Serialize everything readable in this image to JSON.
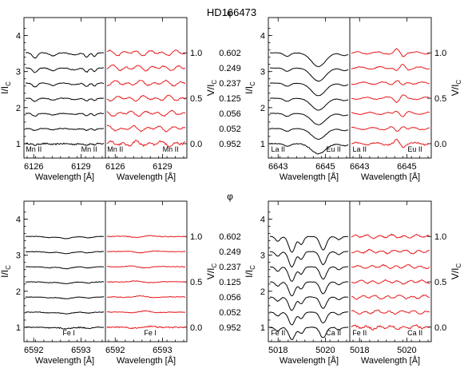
{
  "chart_data": {
    "type": "line",
    "title": "HD166473",
    "phase_label": "φ",
    "phases": [
      "0.602",
      "0.249",
      "0.237",
      "0.125",
      "0.056",
      "0.052",
      "0.952"
    ],
    "colors": {
      "intensity": "#000000",
      "stokes_v": "#e8191c"
    },
    "yaxis": {
      "ylabel_main": "I/I",
      "ylabel_sub": "C",
      "yticks": [
        "1",
        "2",
        "3",
        "4"
      ],
      "ylim": [
        0.6,
        4.5
      ]
    },
    "v_axis": {
      "ylabel_main": "V/I",
      "ylabel_sub": "C",
      "vticks": [
        "0.0",
        "0.5",
        "1.0"
      ]
    },
    "panels": [
      {
        "id": "Mn II 6126-6129",
        "left": {
          "xlabel": "Wavelength [Å]",
          "xticks": [
            "6126",
            "6129"
          ],
          "line_labels": [
            "Mn II",
            "Mn II"
          ]
        },
        "right": {
          "xlabel": "Wavelength [Å]",
          "xticks": [
            "6126",
            "6129"
          ],
          "line_labels": [
            "Mn II",
            "Mn II"
          ]
        },
        "i_profile": {
          "type": "blend",
          "depth_min": 0.04,
          "depth_max": 0.14,
          "noise": 0.02
        },
        "v_profile": {
          "amplitude": 0.09,
          "noise": 0.03
        }
      },
      {
        "id": "Eu II 6645",
        "left": {
          "xlabel": "Wavelength [Å]",
          "xticks": [
            "6643",
            "6645"
          ],
          "line_labels": [
            "La II",
            "Eu II"
          ]
        },
        "right": {
          "xlabel": "Wavelength [Å]",
          "xticks": [
            "6643",
            "6645"
          ],
          "line_labels": [
            "La II",
            "Eu II"
          ]
        },
        "i_profile": {
          "type": "single",
          "depth_min": 0.28,
          "depth_max": 0.38,
          "noise": 0.01
        },
        "v_profile": {
          "amplitude": 0.12,
          "noise": 0.02
        }
      },
      {
        "id": "Fe I 6592-6593",
        "left": {
          "xlabel": "Wavelength [Å]",
          "xticks": [
            "6592",
            "6593"
          ],
          "line_labels": [
            "Fe I"
          ]
        },
        "right": {
          "xlabel": "Wavelength [Å]",
          "xticks": [
            "6592",
            "6593"
          ],
          "line_labels": [
            "Fe I"
          ]
        },
        "i_profile": {
          "type": "weak",
          "depth_min": 0.04,
          "depth_max": 0.06,
          "noise": 0.015
        },
        "v_profile": {
          "amplitude": 0.05,
          "noise": 0.02
        }
      },
      {
        "id": "Fe II 5018 / Ca II 5020",
        "left": {
          "xlabel": "Wavelength [Å]",
          "xticks": [
            "5018",
            "5020"
          ],
          "line_labels": [
            "Fe II",
            "Ca II"
          ]
        },
        "right": {
          "xlabel": "Wavelength [Å]",
          "xticks": [
            "5018",
            "5020"
          ],
          "line_labels": [
            "Fe II",
            "Ca II"
          ]
        },
        "i_profile": {
          "type": "double",
          "depth_min": 0.34,
          "depth_max": 0.44,
          "noise": 0.012
        },
        "v_profile": {
          "amplitude": 0.06,
          "noise": 0.03
        }
      }
    ]
  }
}
